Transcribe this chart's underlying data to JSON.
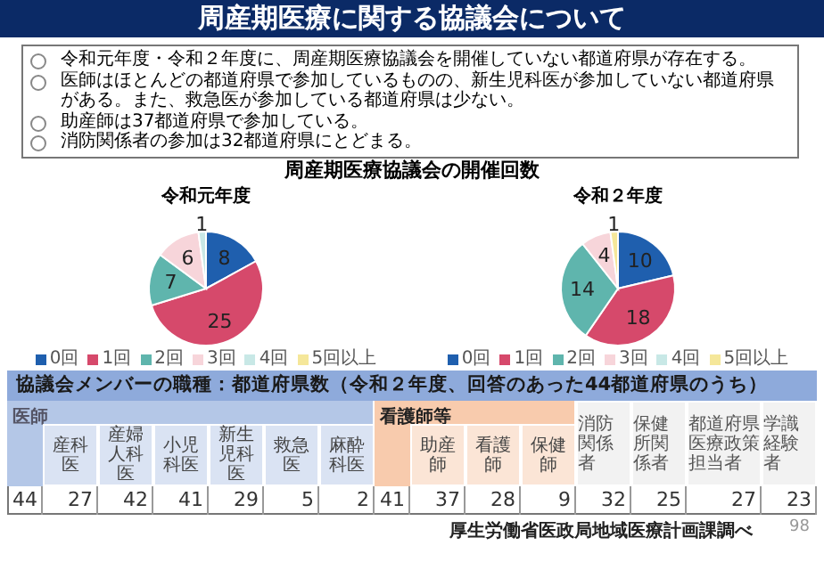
{
  "chart_data": [
    {
      "type": "other",
      "title": "周産期医療に関する協議会について",
      "annotations": [
        "令和元年度・令和２年度に、周産期医療協議会を開催していない都道府県が存在する。",
        "医師はほとんどの都道府県で参加しているものの、新生児科医が参加していない都道府県がある。また、救急医が参加している都道府県は少ない。",
        "助産師は37都道府県で参加している。",
        "消防関係者の参加は32都道府県にとどまる。"
      ]
    },
    {
      "type": "pie",
      "title": "周産期医療協議会の開催回数",
      "subtitle": "令和元年度",
      "categories": [
        "0回",
        "1回",
        "2回",
        "3回",
        "4回",
        "5回以上"
      ],
      "values": [
        8,
        25,
        7,
        6,
        1,
        0
      ],
      "colors": [
        "#1f5fae",
        "#d6496b",
        "#5fb5ad",
        "#f7d5da",
        "#c8e8e6",
        "#f5e79a"
      ],
      "data_labels": true,
      "legend": "bottom"
    },
    {
      "type": "pie",
      "title": "令和２年度",
      "categories": [
        "0回",
        "1回",
        "2回",
        "3回",
        "4回",
        "5回以上"
      ],
      "values": [
        10,
        18,
        14,
        4,
        0,
        1
      ],
      "colors": [
        "#1f5fae",
        "#d6496b",
        "#5fb5ad",
        "#f7d5da",
        "#c8e8e6",
        "#f5e79a"
      ],
      "data_labels": true,
      "legend": "bottom"
    },
    {
      "type": "other",
      "title": "協議会メンバーの職種：都道府県数（令和２年度、回答のあった44都道府県のうち）",
      "categories": [
        null,
        "産科医",
        "産婦人科医",
        "小児科医",
        "新生児科医",
        "救急医",
        "麻酔科医",
        null,
        "助産師",
        "看護師",
        "保健師",
        "消防関係者",
        "保健所関係者",
        "都道府県医療政策担当者",
        "学識経験者"
      ],
      "values": [
        44,
        27,
        42,
        41,
        29,
        5,
        2,
        41,
        37,
        28,
        9,
        32,
        25,
        27,
        23
      ],
      "data_labels": true,
      "annotations": [
        "医師",
        "看護師等",
        "厚生労働省医政局地域医療計画課調べ",
        "98"
      ]
    }
  ]
}
